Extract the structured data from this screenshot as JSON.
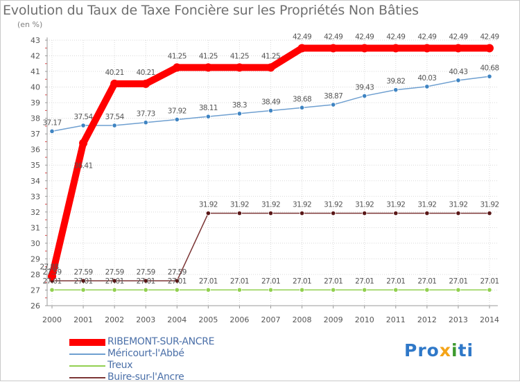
{
  "header": {
    "title": "Evolution du Taux de Taxe Foncière sur les Propriétés Non Bâties",
    "unit": "(en %)"
  },
  "logo": {
    "letters": [
      "P",
      "r",
      "o",
      "x",
      "i",
      "t",
      "i"
    ],
    "text": "Proxiti",
    "colors": [
      "#2f78c8",
      "#2f78c8",
      "#2f78c8",
      "#f4a418",
      "#3d9a2e",
      "#2f78c8",
      "#2f78c8"
    ]
  },
  "chart_data": {
    "type": "line",
    "title": "Evolution du Taux de Taxe Foncière sur les Propriétés Non Bâties",
    "ylabel": "(en %)",
    "xlabel": "",
    "categories": [
      "2000",
      "2001",
      "2002",
      "2003",
      "2004",
      "2005",
      "2006",
      "2007",
      "2008",
      "2009",
      "2010",
      "2011",
      "2012",
      "2013",
      "2014"
    ],
    "ylim": [
      26,
      43
    ],
    "yticks": [
      26,
      27,
      28,
      29,
      30,
      31,
      32,
      33,
      34,
      35,
      36,
      37,
      38,
      39,
      40,
      41,
      42,
      43
    ],
    "grid": true,
    "legend_position": "bottom-left",
    "series": [
      {
        "name": "RIBEMONT-SUR-ANCRE",
        "color": "#ff0000",
        "style": "thick",
        "values": [
          27.88,
          36.41,
          40.21,
          40.21,
          41.25,
          41.25,
          41.25,
          41.25,
          42.49,
          42.49,
          42.49,
          42.49,
          42.49,
          42.49,
          42.49
        ],
        "labels": [
          "27.88",
          "36.41",
          "40.21",
          "40.21",
          "41.25",
          "41.25",
          "41.25",
          "41.25",
          "42.49",
          "42.49",
          "42.49",
          "42.49",
          "42.49",
          "42.49",
          "42.49"
        ]
      },
      {
        "name": "Méricourt-l'Abbé",
        "color": "#6e9fd0",
        "marker": "#3f84c2",
        "values": [
          37.17,
          37.54,
          37.54,
          37.73,
          37.92,
          38.11,
          38.3,
          38.49,
          38.68,
          38.87,
          39.43,
          39.82,
          40.03,
          40.43,
          40.68
        ],
        "labels": [
          "37.17",
          "37.54",
          "37.54",
          "37.73",
          "37.92",
          "38.11",
          "38.3",
          "38.49",
          "38.68",
          "38.87",
          "39.43",
          "39.82",
          "40.03",
          "40.43",
          "40.68"
        ]
      },
      {
        "name": "Treux",
        "color": "#92d050",
        "marker": "#92d050",
        "values": [
          27.01,
          27.01,
          27.01,
          27.01,
          27.01,
          27.01,
          27.01,
          27.01,
          27.01,
          27.01,
          27.01,
          27.01,
          27.01,
          27.01,
          27.01
        ],
        "labels": [
          "27.01",
          "27.01",
          "27.01",
          "27.01",
          "27.01",
          "27.01",
          "27.01",
          "27.01",
          "27.01",
          "27.01",
          "27.01",
          "27.01",
          "27.01",
          "27.01",
          "27.01"
        ]
      },
      {
        "name": "Buire-sur-l'Ancre",
        "color": "#7b3535",
        "marker": "#5a1818",
        "values": [
          27.59,
          27.59,
          27.59,
          27.59,
          27.59,
          31.92,
          31.92,
          31.92,
          31.92,
          31.92,
          31.92,
          31.92,
          31.92,
          31.92,
          31.92
        ],
        "labels": [
          "27.59",
          "27.59",
          "27.59",
          "27.59",
          "27.59",
          "31.92",
          "31.92",
          "31.92",
          "31.92",
          "31.92",
          "31.92",
          "31.92",
          "31.92",
          "31.92",
          "31.92"
        ]
      }
    ]
  }
}
